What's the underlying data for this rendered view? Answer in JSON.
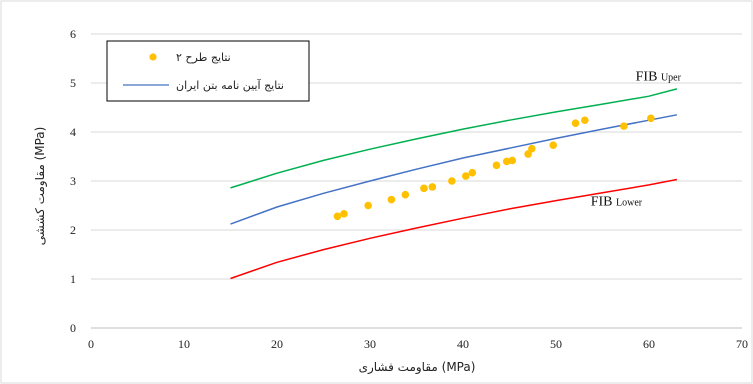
{
  "chart_data": {
    "type": "scatter",
    "xlabel": "مقاومت فشاری (MPa)",
    "ylabel": "مقاومت کششی (MPa)",
    "xlim": [
      0,
      70
    ],
    "ylim": [
      0,
      6
    ],
    "xticks": [
      0,
      10,
      20,
      30,
      40,
      50,
      60,
      70
    ],
    "yticks": [
      0,
      1,
      2,
      3,
      4,
      5,
      6
    ],
    "grid": "horizontal",
    "legend_position": "top-left",
    "legend": [
      {
        "label": "نتایج طرح ۲",
        "marker": "dot",
        "color": "#FFC000"
      },
      {
        "label": "نتایج آیین نامه بتن ایران",
        "marker": "line",
        "color": "#4472C4"
      }
    ],
    "annotations": [
      {
        "main": "FIB",
        "sub": "Uper",
        "x": 61,
        "y": 5.05
      },
      {
        "main": "FIB",
        "sub": "Lower",
        "x": 56.5,
        "y": 2.5
      }
    ],
    "series": [
      {
        "kind": "scatter",
        "color": "#FFC000",
        "points": [
          [
            26.5,
            2.28
          ],
          [
            27.2,
            2.33
          ],
          [
            29.8,
            2.5
          ],
          [
            32.3,
            2.62
          ],
          [
            33.8,
            2.72
          ],
          [
            35.8,
            2.85
          ],
          [
            36.7,
            2.88
          ],
          [
            38.8,
            3.0
          ],
          [
            40.3,
            3.1
          ],
          [
            41.0,
            3.17
          ],
          [
            43.6,
            3.32
          ],
          [
            44.7,
            3.4
          ],
          [
            45.3,
            3.42
          ],
          [
            47.0,
            3.55
          ],
          [
            47.4,
            3.66
          ],
          [
            49.7,
            3.73
          ],
          [
            52.1,
            4.18
          ],
          [
            53.1,
            4.24
          ],
          [
            57.3,
            4.12
          ],
          [
            60.2,
            4.28
          ]
        ]
      },
      {
        "kind": "line",
        "color": "#00B050",
        "x": [
          15,
          20,
          25,
          30,
          35,
          40,
          45,
          50,
          55,
          60,
          63
        ],
        "y": [
          2.86,
          3.16,
          3.42,
          3.65,
          3.86,
          4.06,
          4.24,
          4.41,
          4.57,
          4.73,
          4.88
        ]
      },
      {
        "kind": "line",
        "color": "#4472C4",
        "x": [
          15,
          20,
          25,
          30,
          35,
          40,
          45,
          50,
          55,
          60,
          63
        ],
        "y": [
          2.12,
          2.47,
          2.75,
          3.0,
          3.24,
          3.47,
          3.67,
          3.87,
          4.06,
          4.24,
          4.35
        ]
      },
      {
        "kind": "line",
        "color": "#FF0000",
        "x": [
          15,
          20,
          25,
          30,
          35,
          40,
          45,
          50,
          55,
          60,
          63
        ],
        "y": [
          1.01,
          1.34,
          1.6,
          1.83,
          2.04,
          2.24,
          2.43,
          2.6,
          2.76,
          2.92,
          3.03
        ]
      }
    ]
  }
}
